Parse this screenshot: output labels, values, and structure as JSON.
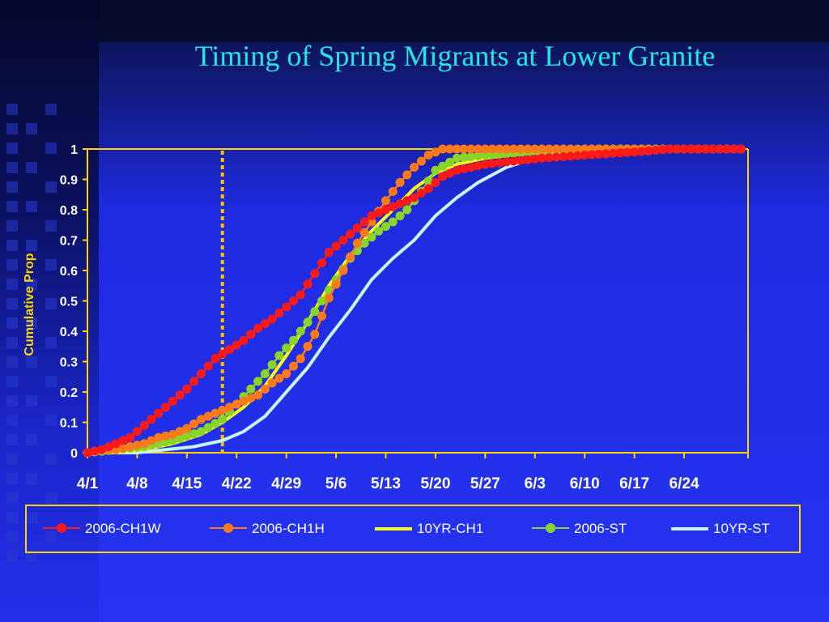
{
  "title": "Timing of Spring Migrants at Lower Granite",
  "colors": {
    "2006-CH1W": "#ff1a1a",
    "2006-CH1H": "#ff7a1a",
    "10YR-CH1": "#ffff22",
    "2006-ST": "#88d42a",
    "10YR-ST": "#c8f4ff",
    "axis": "#ffd400",
    "title": "#22e6e6"
  },
  "chart_data": {
    "type": "line",
    "ylabel": "Cumulative Prop",
    "ylim": [
      0,
      1
    ],
    "yticks": [
      "0",
      "0.1",
      "0.2",
      "0.3",
      "0.4",
      "0.5",
      "0.6",
      "0.7",
      "0.8",
      "0.9",
      "1"
    ],
    "xlim": [
      "4/1",
      "7/3"
    ],
    "xticks": [
      "4/1",
      "4/8",
      "4/15",
      "4/22",
      "4/29",
      "5/6",
      "5/13",
      "5/20",
      "5/27",
      "6/3",
      "6/10",
      "6/17",
      "6/24"
    ],
    "reference_line": {
      "x": "4/20",
      "style": "dashed",
      "color": "#ffc000"
    },
    "grid": false,
    "legend_position": "bottom",
    "series": [
      {
        "name": "2006-CH1W",
        "marker": "circle",
        "points": [
          [
            "4/1",
            0.0
          ],
          [
            "4/3",
            0.01
          ],
          [
            "4/5",
            0.03
          ],
          [
            "4/7",
            0.05
          ],
          [
            "4/9",
            0.09
          ],
          [
            "4/11",
            0.13
          ],
          [
            "4/13",
            0.17
          ],
          [
            "4/15",
            0.21
          ],
          [
            "4/17",
            0.26
          ],
          [
            "4/19",
            0.31
          ],
          [
            "4/21",
            0.34
          ],
          [
            "4/23",
            0.37
          ],
          [
            "4/25",
            0.41
          ],
          [
            "4/27",
            0.44
          ],
          [
            "4/29",
            0.48
          ],
          [
            "5/1",
            0.52
          ],
          [
            "5/3",
            0.59
          ],
          [
            "5/5",
            0.66
          ],
          [
            "5/7",
            0.7
          ],
          [
            "5/9",
            0.74
          ],
          [
            "5/11",
            0.78
          ],
          [
            "5/13",
            0.8
          ],
          [
            "5/15",
            0.82
          ],
          [
            "5/17",
            0.84
          ],
          [
            "5/19",
            0.87
          ],
          [
            "5/21",
            0.91
          ],
          [
            "5/23",
            0.93
          ],
          [
            "5/27",
            0.95
          ],
          [
            "5/31",
            0.96
          ],
          [
            "6/4",
            0.97
          ],
          [
            "6/10",
            0.98
          ],
          [
            "6/17",
            0.99
          ],
          [
            "6/22",
            1.0
          ],
          [
            "7/2",
            1.0
          ]
        ]
      },
      {
        "name": "2006-CH1H",
        "marker": "circle",
        "points": [
          [
            "4/1",
            0.0
          ],
          [
            "4/3",
            0.01
          ],
          [
            "4/5",
            0.01
          ],
          [
            "4/7",
            0.02
          ],
          [
            "4/9",
            0.03
          ],
          [
            "4/11",
            0.05
          ],
          [
            "4/13",
            0.06
          ],
          [
            "4/15",
            0.08
          ],
          [
            "4/17",
            0.11
          ],
          [
            "4/19",
            0.13
          ],
          [
            "4/21",
            0.15
          ],
          [
            "4/23",
            0.17
          ],
          [
            "4/25",
            0.19
          ],
          [
            "4/27",
            0.23
          ],
          [
            "4/29",
            0.26
          ],
          [
            "5/1",
            0.31
          ],
          [
            "5/3",
            0.39
          ],
          [
            "5/5",
            0.51
          ],
          [
            "5/7",
            0.6
          ],
          [
            "5/9",
            0.69
          ],
          [
            "5/11",
            0.76
          ],
          [
            "5/13",
            0.83
          ],
          [
            "5/15",
            0.89
          ],
          [
            "5/17",
            0.94
          ],
          [
            "5/19",
            0.98
          ],
          [
            "5/21",
            1.0
          ],
          [
            "5/25",
            1.0
          ],
          [
            "6/1",
            1.0
          ],
          [
            "6/10",
            1.0
          ],
          [
            "6/20",
            1.0
          ],
          [
            "7/2",
            1.0
          ]
        ]
      },
      {
        "name": "10YR-CH1",
        "marker": "none",
        "points": [
          [
            "4/1",
            0.0
          ],
          [
            "4/5",
            0.0
          ],
          [
            "4/9",
            0.01
          ],
          [
            "4/13",
            0.03
          ],
          [
            "4/17",
            0.06
          ],
          [
            "4/20",
            0.1
          ],
          [
            "4/23",
            0.15
          ],
          [
            "4/26",
            0.22
          ],
          [
            "4/29",
            0.32
          ],
          [
            "5/2",
            0.43
          ],
          [
            "5/5",
            0.55
          ],
          [
            "5/8",
            0.65
          ],
          [
            "5/11",
            0.73
          ],
          [
            "5/14",
            0.8
          ],
          [
            "5/17",
            0.87
          ],
          [
            "5/20",
            0.92
          ],
          [
            "5/23",
            0.95
          ],
          [
            "5/27",
            0.97
          ],
          [
            "6/3",
            0.99
          ],
          [
            "6/10",
            1.0
          ],
          [
            "7/2",
            1.0
          ]
        ]
      },
      {
        "name": "2006-ST",
        "marker": "circle",
        "points": [
          [
            "4/1",
            0.0
          ],
          [
            "4/5",
            0.01
          ],
          [
            "4/9",
            0.02
          ],
          [
            "4/13",
            0.04
          ],
          [
            "4/17",
            0.07
          ],
          [
            "4/20",
            0.11
          ],
          [
            "4/22",
            0.16
          ],
          [
            "4/24",
            0.21
          ],
          [
            "4/26",
            0.26
          ],
          [
            "4/28",
            0.32
          ],
          [
            "4/30",
            0.37
          ],
          [
            "5/2",
            0.43
          ],
          [
            "5/4",
            0.5
          ],
          [
            "5/6",
            0.57
          ],
          [
            "5/8",
            0.64
          ],
          [
            "5/10",
            0.69
          ],
          [
            "5/12",
            0.73
          ],
          [
            "5/14",
            0.76
          ],
          [
            "5/16",
            0.8
          ],
          [
            "5/18",
            0.86
          ],
          [
            "5/20",
            0.93
          ],
          [
            "5/23",
            0.97
          ],
          [
            "5/27",
            0.98
          ],
          [
            "6/3",
            0.99
          ],
          [
            "6/10",
            1.0
          ],
          [
            "6/20",
            1.0
          ],
          [
            "7/2",
            1.0
          ]
        ]
      },
      {
        "name": "10YR-ST",
        "marker": "none",
        "points": [
          [
            "4/1",
            0.0
          ],
          [
            "4/8",
            0.0
          ],
          [
            "4/12",
            0.01
          ],
          [
            "4/16",
            0.02
          ],
          [
            "4/20",
            0.04
          ],
          [
            "4/23",
            0.07
          ],
          [
            "4/26",
            0.12
          ],
          [
            "4/29",
            0.2
          ],
          [
            "5/2",
            0.28
          ],
          [
            "5/5",
            0.38
          ],
          [
            "5/8",
            0.47
          ],
          [
            "5/11",
            0.57
          ],
          [
            "5/14",
            0.64
          ],
          [
            "5/17",
            0.7
          ],
          [
            "5/20",
            0.78
          ],
          [
            "5/23",
            0.84
          ],
          [
            "5/26",
            0.89
          ],
          [
            "5/30",
            0.94
          ],
          [
            "6/3",
            0.97
          ],
          [
            "6/8",
            0.99
          ],
          [
            "6/14",
            1.0
          ],
          [
            "7/2",
            1.0
          ]
        ]
      }
    ]
  }
}
